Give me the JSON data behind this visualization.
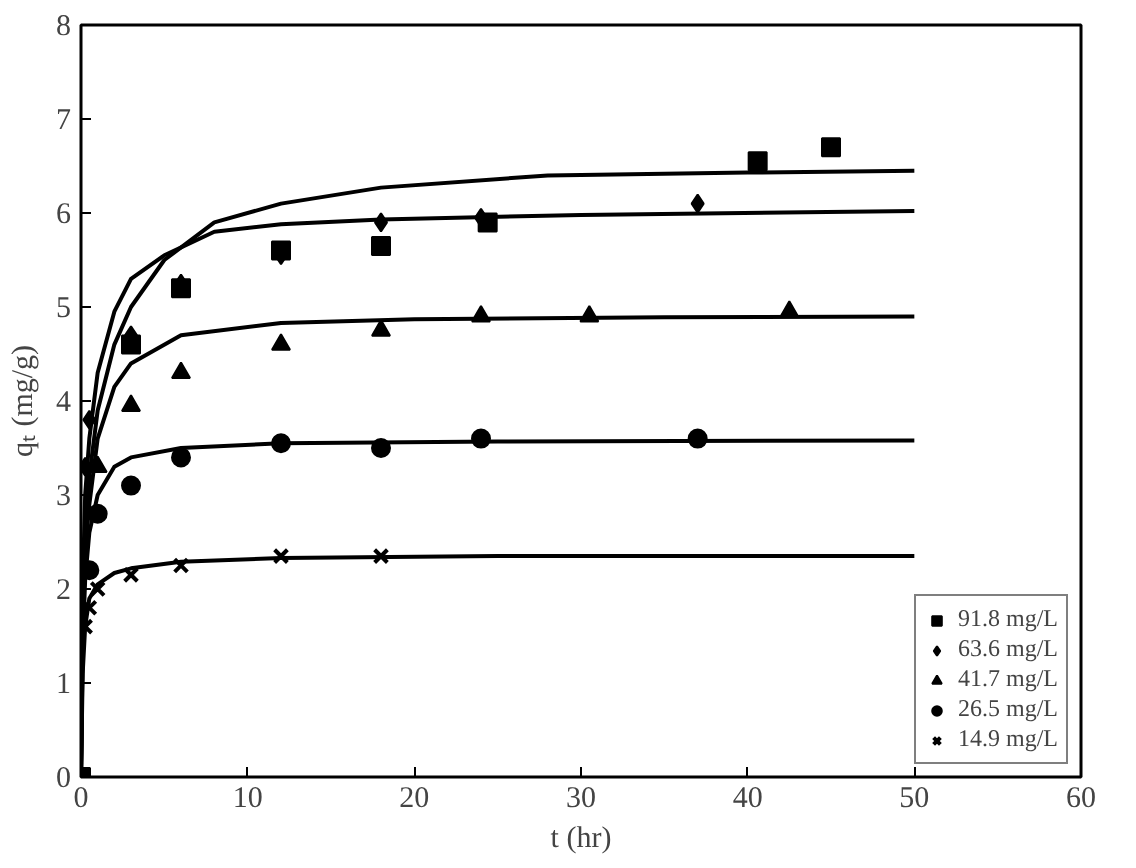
{
  "chart_data": {
    "type": "scatter",
    "xlabel": "t (hr)",
    "ylabel": "qₜ (mg/g)",
    "xlim": [
      0,
      60
    ],
    "ylim": [
      0,
      8
    ],
    "xticks": [
      0,
      10,
      20,
      30,
      40,
      50,
      60
    ],
    "yticks": [
      0,
      1,
      2,
      3,
      4,
      5,
      6,
      7,
      8
    ],
    "grid": false,
    "legend": "bottom right",
    "series": [
      {
        "name": "91.8 mg/L",
        "color": "#000000",
        "marker": "square",
        "x": [
          0,
          3,
          6,
          12,
          18,
          24.4,
          40.6,
          45
        ],
        "values": [
          0,
          4.6,
          5.2,
          5.6,
          5.65,
          5.9,
          6.55,
          6.7
        ]
      },
      {
        "name": "63.6 mg/L",
        "color": "#000000",
        "marker": "diamond",
        "x": [
          0.25,
          0.5,
          3,
          6,
          12,
          18,
          24,
          37
        ],
        "values": [
          3.3,
          3.8,
          4.7,
          5.25,
          5.55,
          5.9,
          5.95,
          6.1
        ]
      },
      {
        "name": "41.7 mg/L",
        "color": "#000000",
        "marker": "triangle",
        "x": [
          1,
          3,
          6,
          12,
          18,
          24,
          30.5,
          42.5
        ],
        "values": [
          3.3,
          3.95,
          4.3,
          4.6,
          4.75,
          4.9,
          4.9,
          4.95
        ]
      },
      {
        "name": "26.5 mg/L",
        "color": "#000000",
        "marker": "circle",
        "x": [
          0.5,
          1,
          3,
          6,
          12,
          18,
          24,
          37
        ],
        "values": [
          2.2,
          2.8,
          3.1,
          3.4,
          3.55,
          3.5,
          3.6,
          3.6
        ]
      },
      {
        "name": "14.9 mg/L",
        "color": "#000000",
        "marker": "cross",
        "x": [
          0.25,
          0.5,
          1,
          3,
          6,
          12,
          18
        ],
        "values": [
          1.6,
          1.8,
          2.0,
          2.15,
          2.25,
          2.35,
          2.35
        ]
      },
      {
        "type": "line",
        "color": "#000000",
        "marker": "none",
        "line_style": "solid",
        "x": [
          0,
          0.1,
          0.25,
          0.5,
          1,
          2,
          3,
          5,
          8,
          12,
          18,
          28,
          40,
          50
        ],
        "values": [
          0,
          1.5,
          2.6,
          3.2,
          3.9,
          4.6,
          5.0,
          5.5,
          5.9,
          6.1,
          6.27,
          6.4,
          6.43,
          6.45
        ]
      },
      {
        "type": "line",
        "color": "#000000",
        "marker": "none",
        "line_style": "solid",
        "x": [
          0,
          0.1,
          0.25,
          0.5,
          1,
          2,
          3,
          5,
          8,
          12,
          18,
          30,
          50
        ],
        "values": [
          0,
          2.0,
          3.0,
          3.6,
          4.3,
          4.95,
          5.3,
          5.55,
          5.8,
          5.88,
          5.93,
          5.98,
          6.02
        ]
      },
      {
        "type": "line",
        "color": "#000000",
        "marker": "none",
        "line_style": "solid",
        "x": [
          0,
          0.1,
          0.25,
          0.5,
          1,
          2,
          3,
          6,
          12,
          20,
          35,
          50
        ],
        "values": [
          0,
          1.6,
          2.4,
          2.9,
          3.6,
          4.15,
          4.4,
          4.7,
          4.83,
          4.87,
          4.89,
          4.9
        ]
      },
      {
        "type": "line",
        "color": "#000000",
        "marker": "none",
        "line_style": "solid",
        "x": [
          0,
          0.1,
          0.25,
          0.5,
          1,
          2,
          3,
          6,
          12,
          25,
          50
        ],
        "values": [
          0,
          1.4,
          2.1,
          2.6,
          3.0,
          3.3,
          3.4,
          3.5,
          3.55,
          3.57,
          3.58
        ]
      },
      {
        "type": "line",
        "color": "#000000",
        "marker": "none",
        "line_style": "solid",
        "x": [
          0,
          0.1,
          0.25,
          0.5,
          1,
          2,
          3,
          6,
          12,
          25,
          50
        ],
        "values": [
          0,
          1.1,
          1.6,
          1.9,
          2.05,
          2.17,
          2.22,
          2.29,
          2.33,
          2.35,
          2.35
        ]
      }
    ]
  }
}
